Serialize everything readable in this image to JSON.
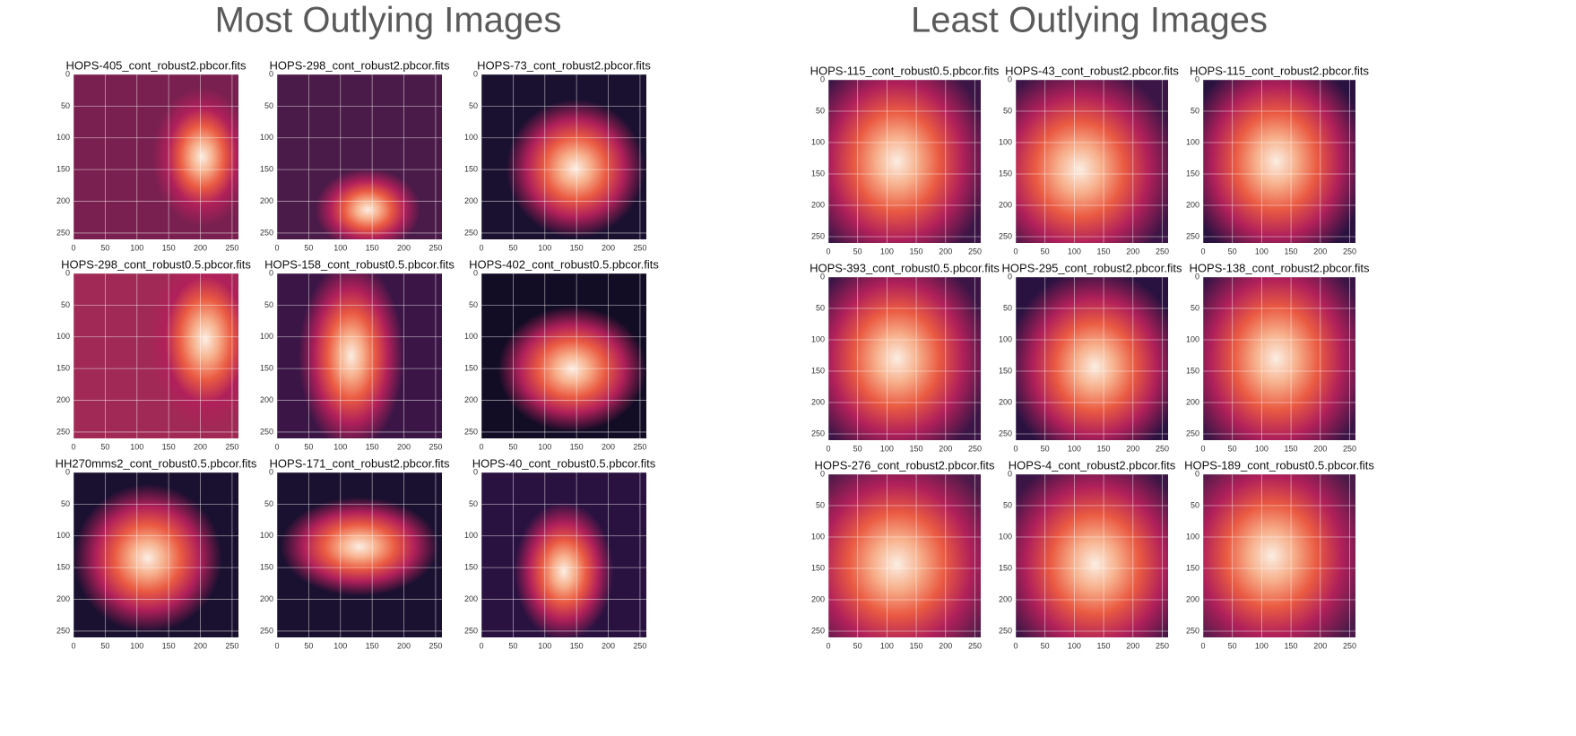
{
  "chart_data": {
    "type": "image-grid",
    "xlim": [
      0,
      260
    ],
    "ylim": [
      0,
      260
    ],
    "xticks": [
      0,
      50,
      100,
      150,
      200,
      250
    ],
    "yticks": [
      0,
      50,
      100,
      150,
      200,
      250
    ],
    "grid": true,
    "sections": [
      {
        "title": "Most Outlying Images",
        "images": [
          "HOPS-405_cont_robust2.pbcor.fits",
          "HOPS-298_cont_robust2.pbcor.fits",
          "HOPS-73_cont_robust2.pbcor.fits",
          "HOPS-298_cont_robust0.5.pbcor.fits",
          "HOPS-158_cont_robust0.5.pbcor.fits",
          "HOPS-402_cont_robust0.5.pbcor.fits",
          "HH270mms2_cont_robust0.5.pbcor.fits",
          "HOPS-171_cont_robust2.pbcor.fits",
          "HOPS-40_cont_robust0.5.pbcor.fits"
        ]
      },
      {
        "title": "Least Outlying Images",
        "images": [
          "HOPS-115_cont_robust0.5.pbcor.fits",
          "HOPS-43_cont_robust2.pbcor.fits",
          "HOPS-115_cont_robust2.pbcor.fits",
          "HOPS-393_cont_robust0.5.pbcor.fits",
          "HOPS-295_cont_robust2.pbcor.fits",
          "HOPS-138_cont_robust2.pbcor.fits",
          "HOPS-276_cont_robust2.pbcor.fits",
          "HOPS-4_cont_robust2.pbcor.fits",
          "HOPS-189_cont_robust0.5.pbcor.fits"
        ]
      }
    ]
  }
}
